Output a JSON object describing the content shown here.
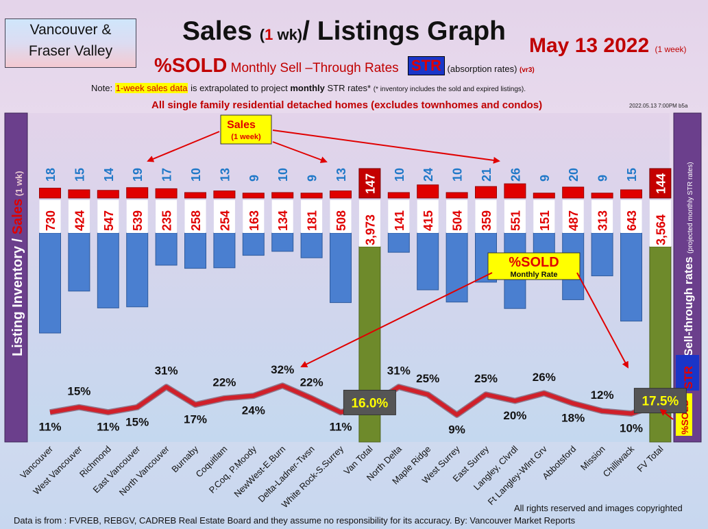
{
  "header": {
    "region_line1": "Vancouver &",
    "region_line2": "Fraser Valley",
    "title_a": "Sales ",
    "title_b": "(",
    "title_c": "1",
    "title_d": " wk)",
    "title_e": "/ Listings Graph",
    "date": "May 13  2022",
    "date_note": "(1 week)",
    "sub_sold": "%SOLD",
    "sub_text": " Monthly Sell –Through Rates ",
    "sub_str": "STR",
    "sub_abs": " (absorption rates) ",
    "sub_vr": "(vr3)",
    "note_a": "Note: ",
    "note_hl": "1-week sales data",
    "note_b": " is extrapolated to project ",
    "note_c": "monthly",
    "note_d": " STR rates* ",
    "note_e": "(* inventory includes the sold and expired listings).",
    "detached": "All single family residential detached homes (excludes townhomes and condos)",
    "stamp": "2022.05.13 7:00PM b5a"
  },
  "footer": {
    "source": "Data is from : FVREB, REBGV, CADREB Real Estate Board and they assume no responsibility for its accuracy. By: Vancouver Market Reports",
    "rights": "All rights reserved and  images copyrighted"
  },
  "colors": {
    "inventory_bar": "#4a7fd0",
    "sales_bar": "#e00000",
    "total_bar": "#6e8a2b",
    "sold_line": "#d0202a",
    "sales_label": "#1f78c8",
    "side_panel": "#6b3f8c"
  },
  "chart_data": {
    "type": "bar",
    "categories": [
      "Vancouver",
      "West Vancouver",
      "Richmond",
      "East Vancouver",
      "North Vancouver",
      "Burnaby",
      "Coquitlam",
      "P.Coq, P.Moody",
      "NewWest-E.Burn",
      "Delta-Ladner-Twsn",
      "White Rock-S.Surrey",
      "Van Total",
      "North Delta",
      "Maple Ridge",
      "West Surrey",
      "East Surrey",
      "Langley, Clvrdl",
      "Ft Langley-Wlnt Grv",
      "Abbotsford",
      "Mission",
      "Chilliwack",
      "FV Total"
    ],
    "series": [
      {
        "name": "Listing Inventory",
        "values": [
          730,
          424,
          547,
          539,
          235,
          258,
          254,
          163,
          134,
          181,
          508,
          3973,
          141,
          415,
          504,
          359,
          551,
          151,
          487,
          313,
          643,
          3564
        ],
        "labels": [
          "730",
          "424",
          "547",
          "539",
          "235",
          "258",
          "254",
          "163",
          "134",
          "181",
          "508",
          "3,973",
          "141",
          "415",
          "504",
          "359",
          "551",
          "151",
          "487",
          "313",
          "643",
          "3,564"
        ]
      },
      {
        "name": "Sales",
        "values": [
          18,
          15,
          14,
          19,
          17,
          10,
          13,
          9,
          10,
          9,
          13,
          147,
          10,
          24,
          10,
          21,
          26,
          9,
          20,
          9,
          15,
          144
        ]
      },
      {
        "name": "%SOLD Monthly Rate",
        "values": [
          11,
          15,
          11,
          15,
          31,
          17,
          22,
          24,
          32,
          22,
          11,
          16.0,
          31,
          25,
          9,
          25,
          20,
          26,
          18,
          12,
          10,
          17.5
        ],
        "labels": [
          "11%",
          "15%",
          "11%",
          "15%",
          "31%",
          "17%",
          "22%",
          "24%",
          "32%",
          "22%",
          "11%",
          "16.0%",
          "31%",
          "25%",
          "9%",
          "25%",
          "20%",
          "26%",
          "18%",
          "12%",
          "10%",
          "17.5%"
        ]
      }
    ],
    "y_left_label_a": "Listing Inventory ",
    "y_left_label_b": "/ ",
    "y_left_label_c": "Sales",
    "y_left_label_d": " (1 wk)",
    "y_right_label_a": "Sell-through rates ",
    "y_right_label_b": "(projected monthly STR rates)",
    "right_sold": "%SOLD",
    "right_str": "STR",
    "annotation_sales": "Sales",
    "annotation_sales_sub": "(1 week)",
    "annotation_sold": "%SOLD",
    "annotation_sold_sub": "Monthly Rate",
    "legend": "none",
    "grid": false
  }
}
